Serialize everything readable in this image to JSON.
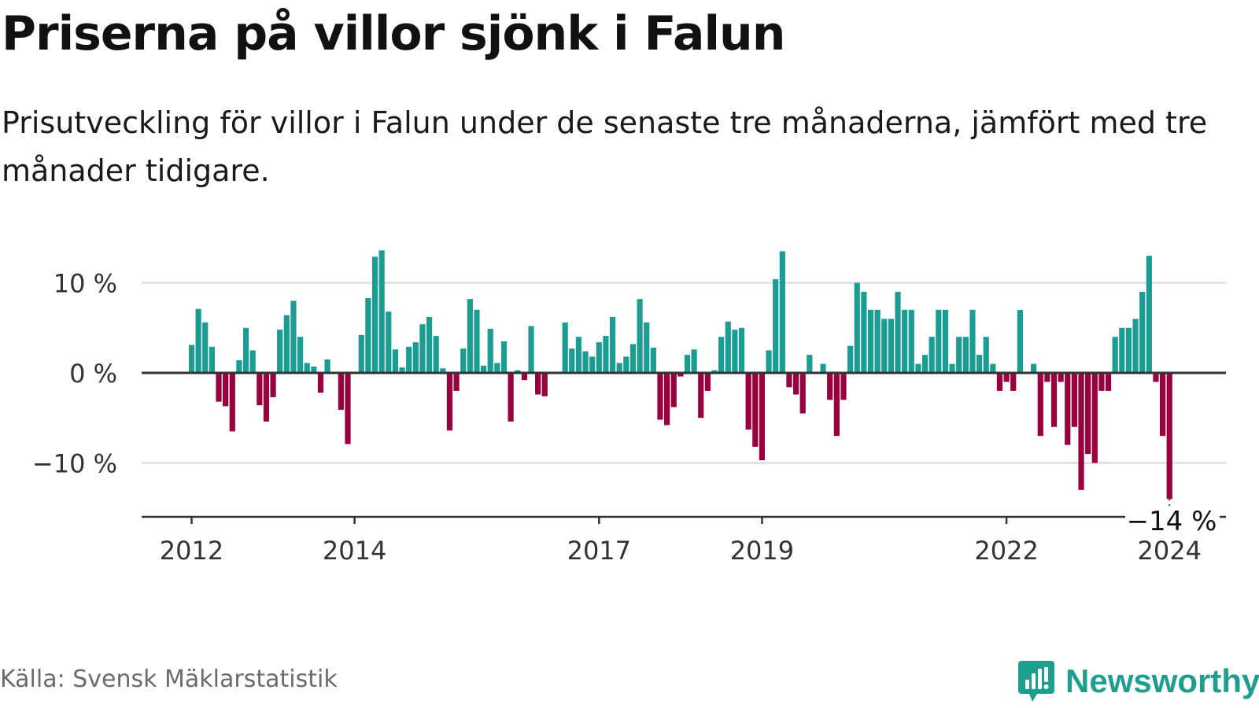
{
  "title": "Priserna på villor sjönk i Falun",
  "subtitle": "Prisutveckling för villor i Falun under de senaste tre månaderna, jämfört med tre månader tidigare.",
  "source": "Källa: Svensk Mäklarstatistik",
  "brand": "Newsworthy",
  "colors": {
    "positive": "#1a9e93",
    "negative": "#99003d",
    "grid": "#dddddd",
    "axis": "#333333",
    "brand": "#1e9e8e"
  },
  "chart_data": {
    "type": "bar",
    "title": "Priserna på villor sjönk i Falun",
    "xlabel": "",
    "ylabel": "",
    "ylim": [
      -16,
      14
    ],
    "grid": true,
    "x_start": "2012-01",
    "frequency": "monthly",
    "y_ticks": [
      {
        "value": 10,
        "label": "10 %"
      },
      {
        "value": 0,
        "label": "0 %"
      },
      {
        "value": -10,
        "label": "−10 %"
      }
    ],
    "x_ticks": [
      {
        "month_index": 0,
        "label": "2012"
      },
      {
        "month_index": 24,
        "label": "2014"
      },
      {
        "month_index": 60,
        "label": "2017"
      },
      {
        "month_index": 84,
        "label": "2019"
      },
      {
        "month_index": 120,
        "label": "2022"
      },
      {
        "month_index": 144,
        "label": "2024"
      }
    ],
    "last_value_label": "−14 %",
    "values": [
      3.1,
      7.1,
      5.6,
      2.9,
      -3.2,
      -3.7,
      -6.5,
      1.4,
      5.0,
      2.5,
      -3.6,
      -5.4,
      -2.7,
      4.8,
      6.4,
      8.0,
      4.0,
      1.1,
      0.7,
      -2.2,
      1.5,
      0,
      -4.1,
      -7.9,
      0,
      4.2,
      8.3,
      12.9,
      13.6,
      6.8,
      2.6,
      0.6,
      2.9,
      3.4,
      5.4,
      6.2,
      4.1,
      0.5,
      -6.4,
      -2.0,
      2.7,
      8.2,
      7.0,
      0.8,
      4.9,
      1.1,
      3.5,
      -5.4,
      0.3,
      -0.8,
      5.2,
      -2.4,
      -2.6,
      0,
      0,
      5.6,
      2.7,
      4.0,
      2.4,
      1.8,
      3.4,
      4.1,
      6.2,
      1.1,
      1.8,
      3.2,
      8.2,
      5.6,
      2.8,
      -5.2,
      -5.8,
      -3.8,
      -0.4,
      2.0,
      2.6,
      -5.0,
      -2.0,
      0.3,
      4.0,
      5.7,
      4.8,
      5.0,
      -6.3,
      -8.2,
      -9.7,
      2.5,
      10.4,
      13.5,
      -1.6,
      -2.4,
      -4.5,
      2.0,
      0,
      1.0,
      -3.0,
      -7.0,
      -3.0,
      3.0,
      10.0,
      9.0,
      7.0,
      7.0,
      6.0,
      6.0,
      9.0,
      7.0,
      7.0,
      1.0,
      2.0,
      4.0,
      7.0,
      7.0,
      1.0,
      4.0,
      4.0,
      7.0,
      2.0,
      4.0,
      1.0,
      -2.0,
      -1.0,
      -2.0,
      7.0,
      0,
      1.0,
      -7.0,
      -1.0,
      -6.0,
      -1.0,
      -8.0,
      -6.0,
      -13.0,
      -9.0,
      -10.0,
      -2.0,
      -2.0,
      4.0,
      5.0,
      5.0,
      6.0,
      9.0,
      13.0,
      -1.0,
      -7.0,
      -14.0
    ]
  }
}
